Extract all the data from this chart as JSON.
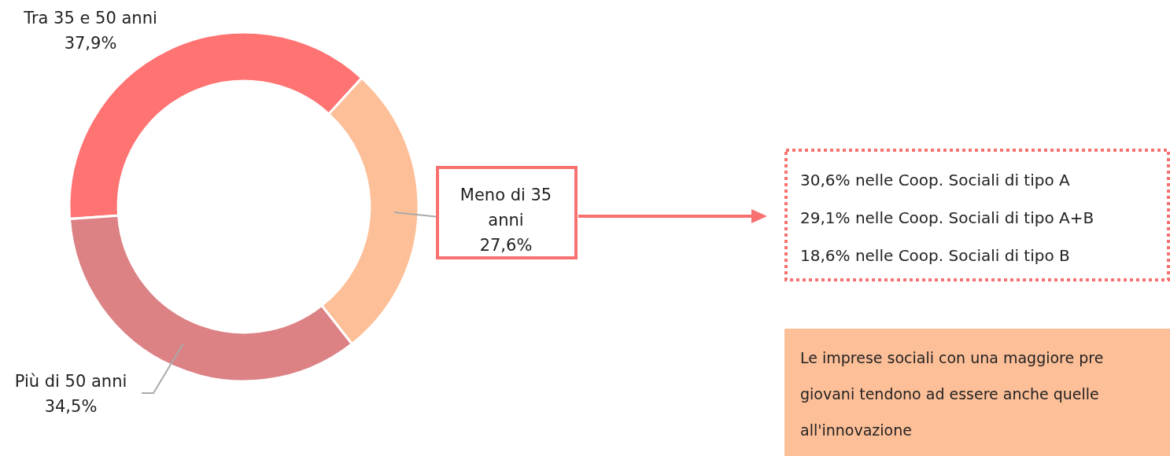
{
  "chart_data": {
    "type": "donut",
    "categories": [
      "Tra 35 e 50 anni",
      "Meno di 35 anni",
      "Più di 50 anni"
    ],
    "values": [
      37.9,
      27.6,
      34.5
    ],
    "value_labels": [
      "37,9%",
      "27,6%",
      "34,5%"
    ],
    "colors": [
      "#ff7373",
      "#fdbf98",
      "#dc8184"
    ],
    "annotations": [
      "30,6% nelle Coop. Sociali di tipo A",
      "29,1% nelle Coop. Sociali di tipo A+B",
      "18,6% nelle Coop. Sociali di tipo B",
      "Le imprese sociali con una maggiore pre",
      "giovani tendono ad essere anche quelle",
      "all'innovazione"
    ]
  }
}
